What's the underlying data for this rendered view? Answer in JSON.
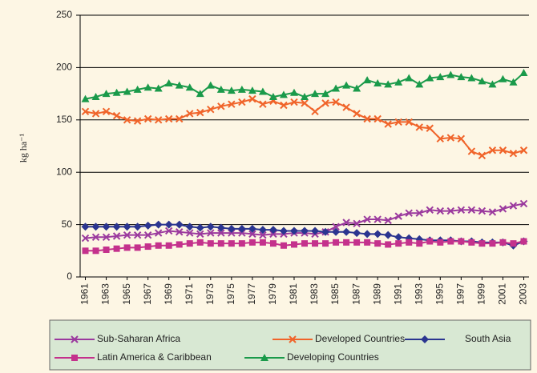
{
  "chart_data": {
    "type": "line",
    "y_label": "kg ha⁻¹",
    "x": [
      1961,
      1962,
      1963,
      1964,
      1965,
      1966,
      1967,
      1968,
      1969,
      1970,
      1971,
      1972,
      1973,
      1974,
      1975,
      1976,
      1977,
      1978,
      1979,
      1980,
      1981,
      1982,
      1983,
      1984,
      1985,
      1986,
      1987,
      1988,
      1989,
      1990,
      1991,
      1992,
      1993,
      1994,
      1995,
      1996,
      1997,
      1998,
      1999,
      2000,
      2001,
      2002,
      2003
    ],
    "xlim": [
      1960.5,
      2003.5
    ],
    "xticks": [
      1961,
      1963,
      1965,
      1967,
      1969,
      1971,
      1973,
      1975,
      1977,
      1979,
      1981,
      1983,
      1985,
      1987,
      1989,
      1991,
      1993,
      1995,
      1997,
      1999,
      2001,
      2003
    ],
    "ylim": [
      0,
      250
    ],
    "yticks": [
      0,
      50,
      100,
      150,
      200,
      250
    ],
    "grid": true,
    "series": [
      {
        "name": "Sub-Saharan Africa",
        "color": "#9b3a9e",
        "marker": "x",
        "values": [
          37,
          38,
          38,
          39,
          40,
          40,
          40,
          42,
          44,
          43,
          42,
          41,
          42,
          42,
          42,
          42,
          41,
          40,
          41,
          41,
          42,
          42,
          41,
          43,
          48,
          52,
          51,
          55,
          55,
          54,
          58,
          61,
          61,
          64,
          63,
          63,
          64,
          64,
          63,
          62,
          65,
          68,
          70
        ]
      },
      {
        "name": "Developed Countries",
        "color": "#f0642a",
        "marker": "x",
        "values": [
          158,
          156,
          158,
          154,
          150,
          149,
          151,
          150,
          151,
          151,
          156,
          157,
          160,
          163,
          165,
          167,
          170,
          165,
          168,
          164,
          167,
          166,
          158,
          166,
          167,
          162,
          156,
          151,
          151,
          146,
          148,
          148,
          143,
          142,
          132,
          133,
          132,
          120,
          116,
          121,
          121,
          118,
          121
        ]
      },
      {
        "name": "South Asia",
        "color": "#2b3590",
        "marker": "diamond",
        "values": [
          48,
          48,
          48,
          48,
          48,
          48,
          49,
          50,
          50,
          50,
          48,
          47,
          48,
          47,
          46,
          46,
          46,
          45,
          45,
          44,
          44,
          44,
          44,
          43,
          43,
          43,
          42,
          41,
          41,
          40,
          38,
          37,
          36,
          35,
          35,
          35,
          34,
          34,
          33,
          33,
          33,
          30,
          34
        ]
      },
      {
        "name": "Latin America & Caribbean",
        "color": "#c4318c",
        "marker": "square",
        "values": [
          25,
          25,
          26,
          27,
          28,
          28,
          29,
          30,
          30,
          31,
          32,
          33,
          32,
          32,
          32,
          32,
          33,
          33,
          32,
          30,
          31,
          32,
          32,
          32,
          33,
          33,
          33,
          33,
          32,
          31,
          32,
          33,
          32,
          34,
          33,
          34,
          34,
          33,
          32,
          32,
          33,
          32,
          34
        ]
      },
      {
        "name": "Developing Countries",
        "color": "#1a9a4a",
        "marker": "triangle",
        "values": [
          170,
          172,
          175,
          176,
          177,
          179,
          181,
          180,
          185,
          183,
          181,
          175,
          183,
          179,
          178,
          179,
          178,
          177,
          172,
          174,
          176,
          172,
          175,
          175,
          180,
          183,
          180,
          188,
          185,
          184,
          186,
          190,
          184,
          190,
          191,
          193,
          191,
          190,
          187,
          184,
          189,
          186,
          195
        ]
      }
    ]
  }
}
